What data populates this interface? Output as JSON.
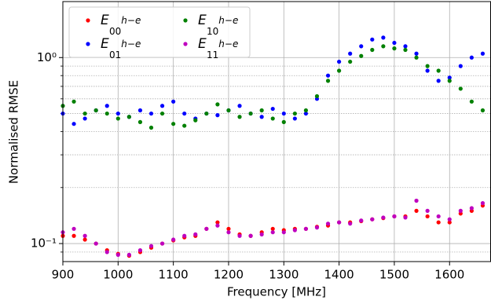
{
  "chart_data": {
    "type": "scatter",
    "x_label": "Frequency [MHz]",
    "y_label": "Normalised RMSE",
    "xlim": [
      900,
      1675
    ],
    "xticks": [
      900,
      1000,
      1100,
      1200,
      1300,
      1400,
      1500,
      1600
    ],
    "ylim": [
      0.08,
      2
    ],
    "yticks": [
      {
        "value": 0.1,
        "label": "10⁻¹"
      },
      {
        "value": 1,
        "label": "10⁰"
      }
    ],
    "yminorticks": [
      0.09,
      0.2,
      0.3,
      0.4,
      0.5,
      0.6,
      0.7,
      0.8,
      0.9
    ],
    "log_y": true,
    "grid": true,
    "legend": "upper-left",
    "series": [
      {
        "name": "E",
        "sub": "00",
        "sup": "h−e",
        "color": "#ff0000",
        "x": [
          900,
          920,
          940,
          960,
          980,
          1000,
          1020,
          1040,
          1060,
          1080,
          1100,
          1120,
          1140,
          1160,
          1180,
          1200,
          1220,
          1240,
          1260,
          1280,
          1300,
          1320,
          1340,
          1360,
          1380,
          1400,
          1420,
          1440,
          1460,
          1480,
          1500,
          1520,
          1540,
          1560,
          1580,
          1600,
          1620,
          1640,
          1660
        ],
        "values": [
          0.11,
          0.11,
          0.105,
          0.1,
          0.092,
          0.088,
          0.086,
          0.09,
          0.095,
          0.1,
          0.104,
          0.108,
          0.11,
          0.12,
          0.13,
          0.12,
          0.112,
          0.11,
          0.115,
          0.12,
          0.118,
          0.12,
          0.12,
          0.123,
          0.125,
          0.13,
          0.13,
          0.132,
          0.135,
          0.137,
          0.14,
          0.14,
          0.15,
          0.14,
          0.13,
          0.13,
          0.145,
          0.15,
          0.16
        ]
      },
      {
        "name": "E",
        "sub": "01",
        "sup": "h−e",
        "color": "#0000ff",
        "x": [
          900,
          920,
          940,
          960,
          980,
          1000,
          1020,
          1040,
          1060,
          1080,
          1100,
          1120,
          1140,
          1160,
          1180,
          1200,
          1220,
          1240,
          1260,
          1280,
          1300,
          1320,
          1340,
          1360,
          1380,
          1400,
          1420,
          1440,
          1460,
          1480,
          1500,
          1520,
          1540,
          1560,
          1580,
          1600,
          1620,
          1640,
          1660
        ],
        "values": [
          0.5,
          0.44,
          0.47,
          0.52,
          0.55,
          0.5,
          0.48,
          0.52,
          0.5,
          0.55,
          0.58,
          0.5,
          0.47,
          0.5,
          0.49,
          0.52,
          0.55,
          0.5,
          0.48,
          0.53,
          0.5,
          0.47,
          0.5,
          0.6,
          0.8,
          0.95,
          1.05,
          1.15,
          1.25,
          1.28,
          1.2,
          1.15,
          1.05,
          0.85,
          0.75,
          0.78,
          0.9,
          1.0,
          1.05
        ]
      },
      {
        "name": "E",
        "sub": "10",
        "sup": "h−e",
        "color": "#008000",
        "x": [
          900,
          920,
          940,
          960,
          980,
          1000,
          1020,
          1040,
          1060,
          1080,
          1100,
          1120,
          1140,
          1160,
          1180,
          1200,
          1220,
          1240,
          1260,
          1280,
          1300,
          1320,
          1340,
          1360,
          1380,
          1400,
          1420,
          1440,
          1460,
          1480,
          1500,
          1520,
          1540,
          1560,
          1580,
          1600,
          1620,
          1640,
          1660
        ],
        "values": [
          0.55,
          0.58,
          0.5,
          0.52,
          0.5,
          0.47,
          0.48,
          0.45,
          0.42,
          0.5,
          0.44,
          0.43,
          0.46,
          0.5,
          0.56,
          0.52,
          0.48,
          0.5,
          0.52,
          0.47,
          0.45,
          0.5,
          0.52,
          0.62,
          0.75,
          0.85,
          0.95,
          1.02,
          1.1,
          1.15,
          1.12,
          1.1,
          1.0,
          0.9,
          0.85,
          0.75,
          0.68,
          0.58,
          0.52
        ]
      },
      {
        "name": "E",
        "sub": "11",
        "sup": "h−e",
        "color": "#bf00bf",
        "x": [
          900,
          920,
          940,
          960,
          980,
          1000,
          1020,
          1040,
          1060,
          1080,
          1100,
          1120,
          1140,
          1160,
          1180,
          1200,
          1220,
          1240,
          1260,
          1280,
          1300,
          1320,
          1340,
          1360,
          1380,
          1400,
          1420,
          1440,
          1460,
          1480,
          1500,
          1520,
          1540,
          1560,
          1580,
          1600,
          1620,
          1640,
          1660
        ],
        "values": [
          0.115,
          0.12,
          0.11,
          0.1,
          0.09,
          0.087,
          0.087,
          0.092,
          0.097,
          0.1,
          0.105,
          0.11,
          0.112,
          0.12,
          0.125,
          0.115,
          0.11,
          0.11,
          0.112,
          0.115,
          0.115,
          0.118,
          0.12,
          0.122,
          0.128,
          0.13,
          0.128,
          0.133,
          0.135,
          0.138,
          0.14,
          0.138,
          0.17,
          0.15,
          0.14,
          0.135,
          0.15,
          0.155,
          0.165
        ]
      }
    ]
  }
}
